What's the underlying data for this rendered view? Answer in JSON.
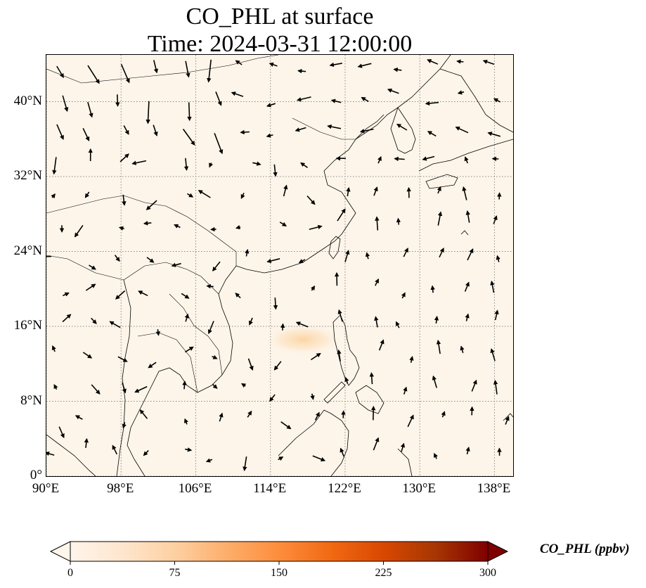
{
  "title": {
    "line1": "CO_PHL at surface",
    "line2": "Time: 2024-03-31 12:00:00"
  },
  "map": {
    "extent": {
      "lon_min": 90,
      "lon_max": 140,
      "lat_min": 0,
      "lat_max": 45
    },
    "lat_ticks": [
      {
        "value": 0,
        "label": "0°"
      },
      {
        "value": 8,
        "label": "8°N"
      },
      {
        "value": 16,
        "label": "16°N"
      },
      {
        "value": 24,
        "label": "24°N"
      },
      {
        "value": 32,
        "label": "32°N"
      },
      {
        "value": 40,
        "label": "40°N"
      }
    ],
    "lon_ticks": [
      {
        "value": 90,
        "label": "90°E"
      },
      {
        "value": 98,
        "label": "98°E"
      },
      {
        "value": 106,
        "label": "106°E"
      },
      {
        "value": 114,
        "label": "114°E"
      },
      {
        "value": 122,
        "label": "122°E"
      },
      {
        "value": 130,
        "label": "130°E"
      },
      {
        "value": 138,
        "label": "138°E"
      }
    ],
    "gridlines": true,
    "background_color": "#fdf5e9",
    "coastline_color": "#000000",
    "gridline_color": "#888888",
    "plume": {
      "lon": 117.5,
      "lat": 14.6,
      "color": "#fcd9ad"
    }
  },
  "colorbar": {
    "label": "CO_PHL (ppbv)",
    "min": 0,
    "max": 300,
    "ticks": [
      {
        "value": 0,
        "label": "0"
      },
      {
        "value": 75,
        "label": "75"
      },
      {
        "value": 150,
        "label": "150"
      },
      {
        "value": 225,
        "label": "225"
      },
      {
        "value": 300,
        "label": "300"
      }
    ],
    "colormap": [
      "#fff5eb",
      "#fee6ce",
      "#fdd0a2",
      "#fdae6b",
      "#fd8d3c",
      "#f16913",
      "#d94801",
      "#a63603",
      "#7f0000"
    ],
    "extend": "both"
  }
}
